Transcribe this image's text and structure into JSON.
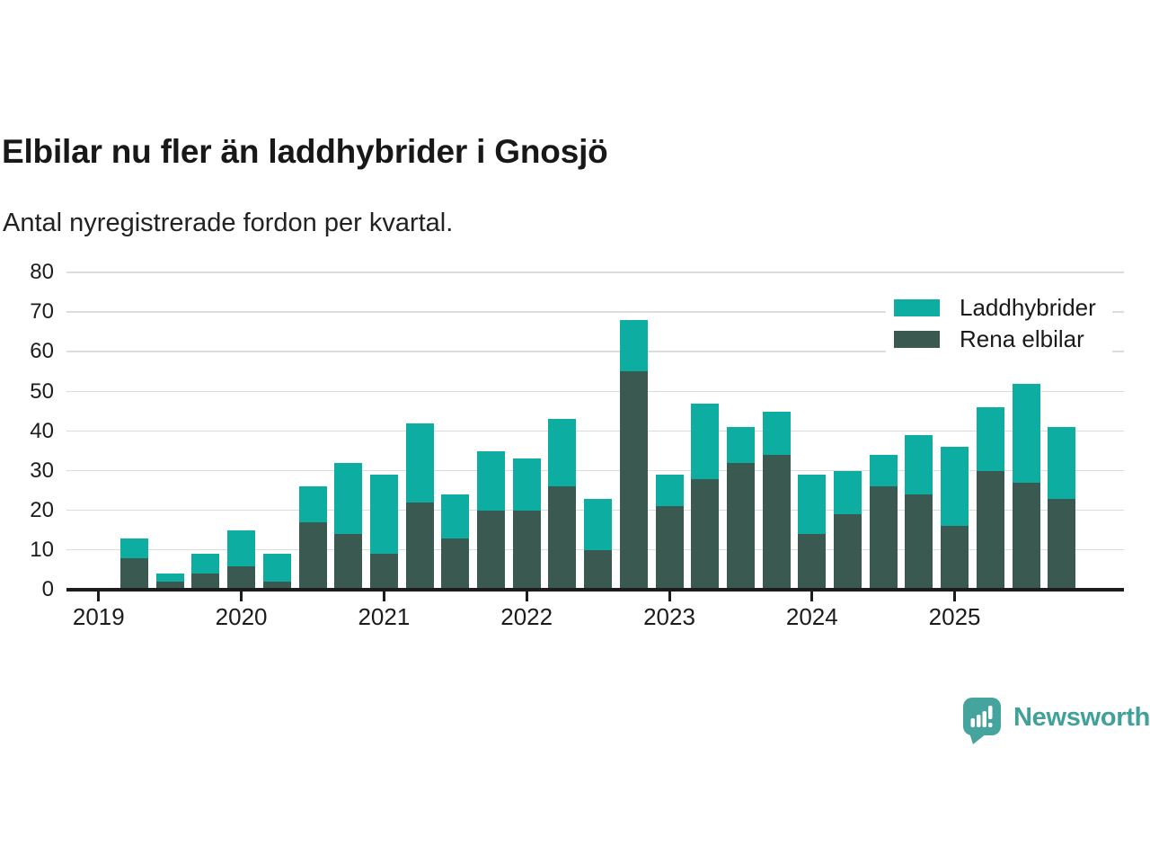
{
  "title": "Elbilar nu fler än laddhybrider i Gnosjö",
  "subtitle": "Antal nyregistrerade fordon per kvartal.",
  "legend": {
    "items": [
      {
        "label": "Laddhybrider",
        "color": "#0dada2"
      },
      {
        "label": "Rena elbilar",
        "color": "#3a5951"
      }
    ]
  },
  "branding": {
    "logo_text": "Newsworthy",
    "logo_color": "#45a49d",
    "text_color": "#3fa19a"
  },
  "colors": {
    "laddhybrider": "#0dada2",
    "rena_elbilar": "#3a5951",
    "gridline": "#dcdcdc",
    "axis": "#1c1c1c",
    "text": "#1a1a1a"
  },
  "chart_data": {
    "type": "bar",
    "stacked": true,
    "title": "Elbilar nu fler än laddhybrider i Gnosjö",
    "xlabel": "",
    "ylabel": "Antal nyregistrerade fordon per kvartal",
    "ylim": [
      0,
      80
    ],
    "y_ticks": [
      0,
      10,
      20,
      30,
      40,
      50,
      60,
      70,
      80
    ],
    "grid": "horizontal",
    "legend_position": "top-right",
    "categories": [
      "2019 Q1",
      "2019 Q2",
      "2019 Q3",
      "2019 Q4",
      "2020 Q1",
      "2020 Q2",
      "2020 Q3",
      "2020 Q4",
      "2021 Q1",
      "2021 Q2",
      "2021 Q3",
      "2021 Q4",
      "2022 Q1",
      "2022 Q2",
      "2022 Q3",
      "2022 Q4",
      "2023 Q1",
      "2023 Q2",
      "2023 Q3",
      "2023 Q4",
      "2024 Q1",
      "2024 Q2",
      "2024 Q3",
      "2024 Q4",
      "2025 Q1",
      "2025 Q2",
      "2025 Q3",
      "2025 Q4"
    ],
    "x_tick_labels": [
      "2019",
      "2020",
      "2021",
      "2022",
      "2023",
      "2024",
      "2025"
    ],
    "x_tick_slot_indices": [
      0,
      4,
      8,
      12,
      16,
      20,
      24
    ],
    "series": [
      {
        "name": "Rena elbilar",
        "color": "#3a5951",
        "values": [
          0,
          8,
          2,
          4,
          6,
          2,
          17,
          14,
          9,
          22,
          13,
          20,
          20,
          26,
          10,
          55,
          21,
          28,
          32,
          34,
          14,
          19,
          26,
          24,
          16,
          30,
          27,
          23
        ]
      },
      {
        "name": "Laddhybrider",
        "color": "#0dada2",
        "values": [
          0,
          5,
          2,
          5,
          9,
          7,
          9,
          18,
          20,
          20,
          11,
          15,
          13,
          17,
          13,
          13,
          8,
          19,
          9,
          11,
          15,
          11,
          8,
          15,
          20,
          16,
          25,
          18
        ]
      }
    ],
    "stack_totals": [
      0,
      13,
      4,
      9,
      15,
      9,
      26,
      32,
      29,
      42,
      24,
      35,
      33,
      43,
      23,
      68,
      29,
      47,
      41,
      45,
      29,
      30,
      34,
      39,
      36,
      46,
      52,
      41
    ]
  }
}
